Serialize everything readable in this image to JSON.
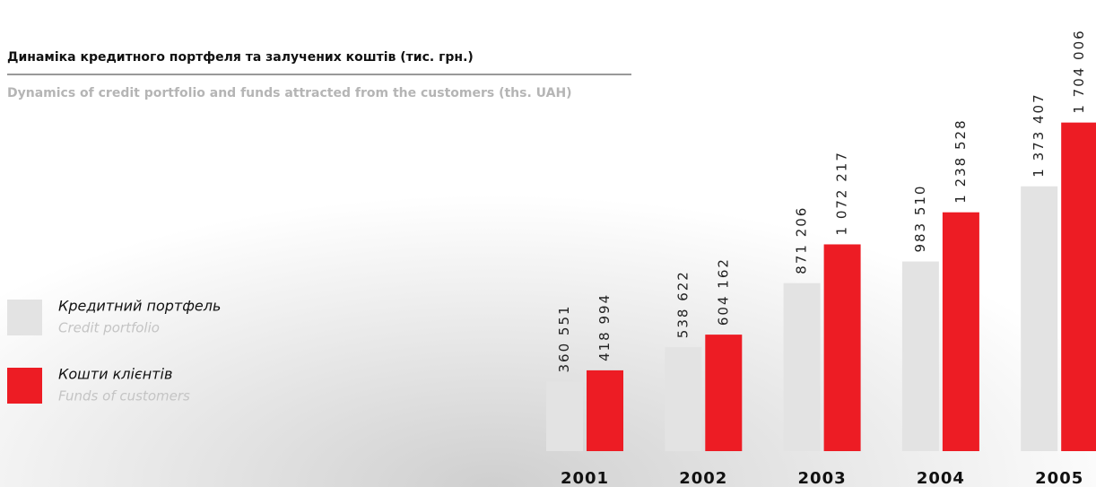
{
  "chart_data": {
    "type": "bar",
    "title": "Динаміка кредитного портфеля та залучених коштів (тис. грн.)",
    "subtitle": "Dynamics of credit portfolio and funds attracted from the customers (ths. UAH)",
    "categories": [
      "2001",
      "2002",
      "2003",
      "2004",
      "2005"
    ],
    "ylim": [
      0,
      1800000
    ],
    "series": [
      {
        "name": "Кредитний портфель",
        "name_en": "Credit portfolio",
        "color": "#e3e3e3",
        "values": [
          360551,
          538622,
          871206,
          983510,
          1373407
        ],
        "value_labels": [
          "360 551",
          "538 622",
          "871 206",
          "983 510",
          "1 373 407"
        ]
      },
      {
        "name": "Кошти клієнтів",
        "name_en": "Funds of customers",
        "color": "#ed1c24",
        "values": [
          418994,
          604162,
          1072217,
          1238528,
          1704006
        ],
        "value_labels": [
          "418 994",
          "604 162",
          "1 072 217",
          "1 238 528",
          "1 704 006"
        ]
      }
    ]
  }
}
